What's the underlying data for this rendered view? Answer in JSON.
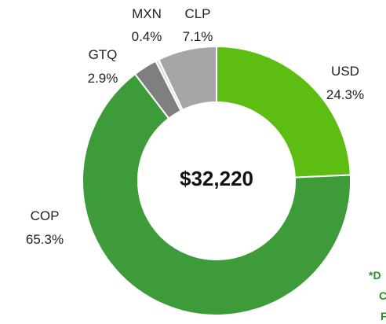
{
  "chart_data": {
    "type": "donut",
    "categories": [
      "USD",
      "COP",
      "GTQ",
      "MXN",
      "CLP"
    ],
    "values": [
      24.3,
      65.3,
      2.9,
      0.4,
      7.1
    ],
    "value_labels": [
      "24.3%",
      "65.3%",
      "2.9%",
      "0.4%",
      "7.1%"
    ],
    "colors": [
      "#5dbd12",
      "#3d9b3a",
      "#7f7f7f",
      "#d9d9d9",
      "#a6a6a6"
    ],
    "center_label": "$32,220",
    "annotation": [
      "*D",
      "C",
      "F"
    ]
  }
}
